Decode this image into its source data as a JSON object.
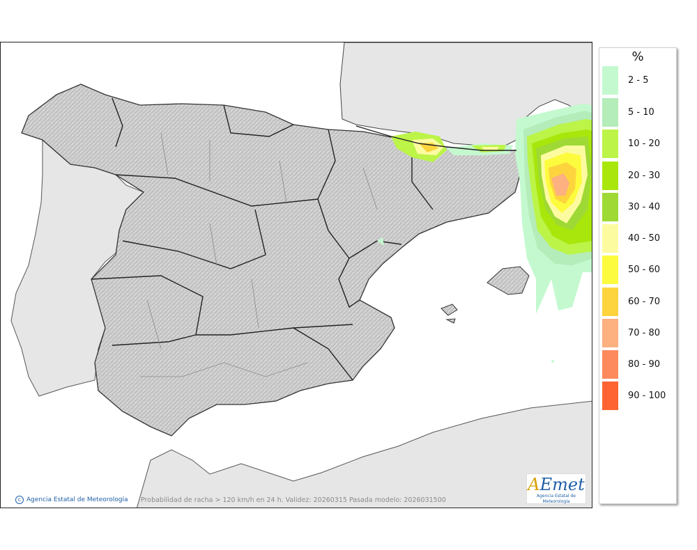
{
  "legend": {
    "title": "%",
    "items": [
      {
        "label": "2 - 5",
        "color": "#c4f9cf"
      },
      {
        "label": "5 - 10",
        "color": "#b4ecba"
      },
      {
        "label": "10 - 20",
        "color": "#bcf448"
      },
      {
        "label": "20 - 30",
        "color": "#a9e60c"
      },
      {
        "label": "30 - 40",
        "color": "#9fd935"
      },
      {
        "label": "40 - 50",
        "color": "#fdfba0"
      },
      {
        "label": "50 - 60",
        "color": "#fdfb3e"
      },
      {
        "label": "60 - 70",
        "color": "#fdd43e"
      },
      {
        "label": "70 - 80",
        "color": "#fdb080"
      },
      {
        "label": "80 - 90",
        "color": "#fd8a5c"
      },
      {
        "label": "90 - 100",
        "color": "#fd6431"
      }
    ]
  },
  "footer": {
    "credit": "Agencia Estatal de Meteorología",
    "caption": "Probabilidad de racha > 120 km/h en 24 h. Validez: 20260315 Pasada modelo: 2026031500"
  },
  "logo": {
    "text": "AEmet",
    "subtitle": "Agencia Estatal de Meteorología"
  }
}
